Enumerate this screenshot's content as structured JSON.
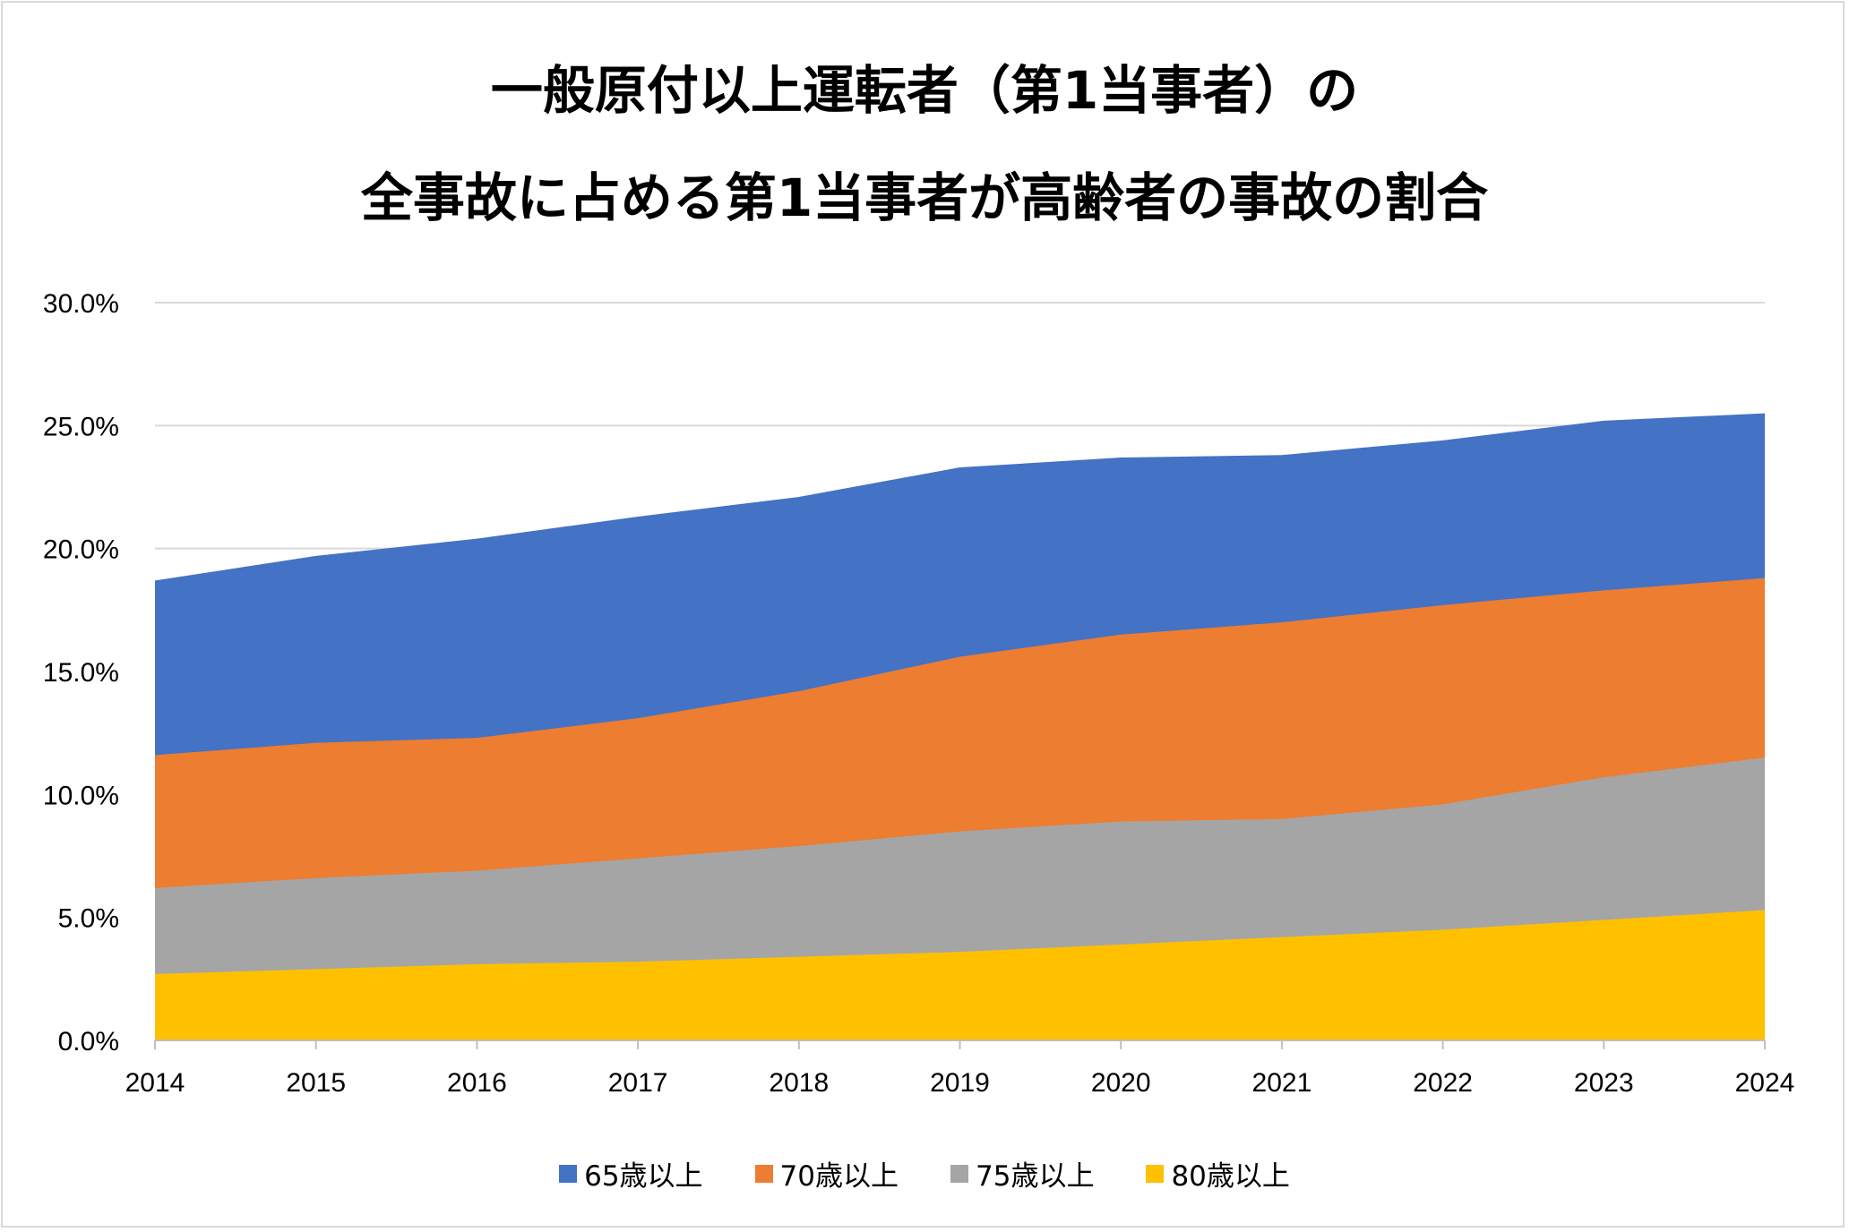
{
  "title_lines": [
    "一般原付以上運転者（第1当事者）の",
    "全事故に占める第1当事者が高齢者の事故の割合"
  ],
  "colors": {
    "65歳以上": "#4472C4",
    "70歳以上": "#ED7D31",
    "75歳以上": "#A5A5A5",
    "80歳以上": "#FFC000",
    "grid": "#d9d9d9",
    "axis": "#bfbfbf"
  },
  "chart_data": {
    "type": "area",
    "stacked": false,
    "title": "一般原付以上運転者（第1当事者）の全事故に占める第1当事者が高齢者の事故の割合",
    "x": [
      "2014",
      "2015",
      "2016",
      "2017",
      "2018",
      "2019",
      "2020",
      "2021",
      "2022",
      "2023",
      "2024"
    ],
    "y_ticks": [
      "0.0%",
      "5.0%",
      "10.0%",
      "15.0%",
      "20.0%",
      "25.0%",
      "30.0%"
    ],
    "ylim": [
      0,
      30
    ],
    "grid": true,
    "legend_position": "bottom",
    "series": [
      {
        "name": "65歳以上",
        "values": [
          18.7,
          19.7,
          20.4,
          21.3,
          22.1,
          23.3,
          23.7,
          23.8,
          24.4,
          25.2,
          25.5
        ]
      },
      {
        "name": "70歳以上",
        "values": [
          11.6,
          12.1,
          12.3,
          13.1,
          14.2,
          15.6,
          16.5,
          17.0,
          17.7,
          18.3,
          18.8
        ]
      },
      {
        "name": "75歳以上",
        "values": [
          6.2,
          6.6,
          6.9,
          7.4,
          7.9,
          8.5,
          8.9,
          9.0,
          9.6,
          10.7,
          11.5
        ]
      },
      {
        "name": "80歳以上",
        "values": [
          2.7,
          2.9,
          3.1,
          3.2,
          3.4,
          3.6,
          3.9,
          4.2,
          4.5,
          4.9,
          5.3
        ]
      }
    ]
  },
  "legend": [
    "65歳以上",
    "70歳以上",
    "75歳以上",
    "80歳以上"
  ]
}
